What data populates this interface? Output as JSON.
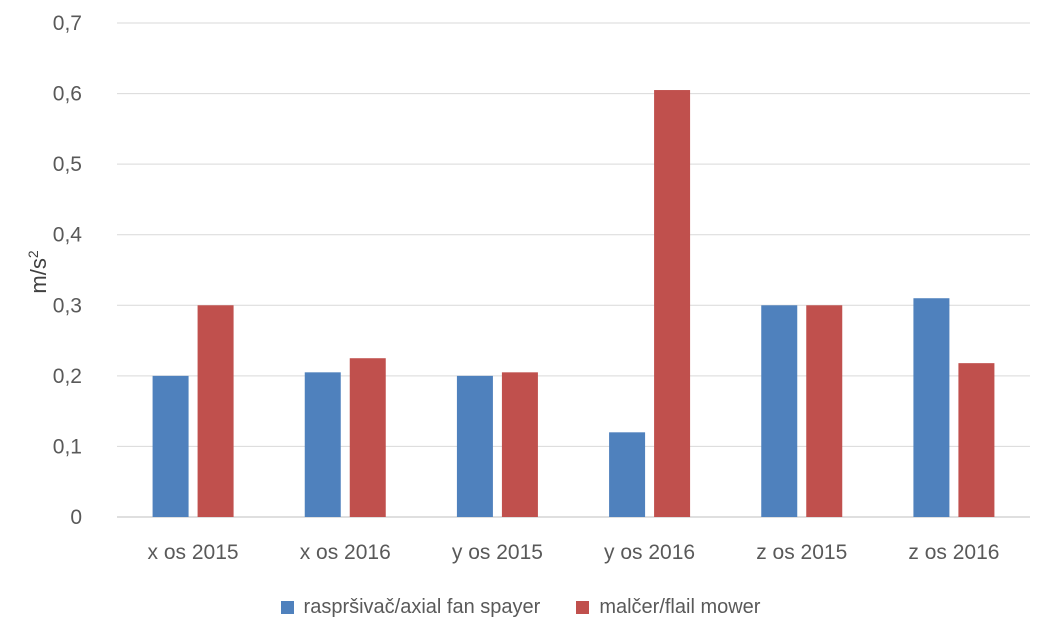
{
  "chart_data": {
    "type": "bar",
    "categories": [
      "x os 2015",
      "x os 2016",
      "y os 2015",
      "y os 2016",
      "z os 2015",
      "z os 2016"
    ],
    "series": [
      {
        "name": "raspršivač/axial fan spayer",
        "color": "#4f81bd",
        "values": [
          0.2,
          0.205,
          0.2,
          0.12,
          0.3,
          0.31
        ]
      },
      {
        "name": "malčer/flail mower",
        "color": "#c0504d",
        "values": [
          0.3,
          0.225,
          0.205,
          0.605,
          0.3,
          0.218
        ]
      }
    ],
    "ylabel": "m/s",
    "ylabel_superscript": "2",
    "ylim": [
      0,
      0.7
    ],
    "yticks": [
      0,
      0.1,
      0.2,
      0.3,
      0.4,
      0.5,
      0.6,
      0.7
    ],
    "ytick_labels": [
      "0",
      "0,1",
      "0,2",
      "0,3",
      "0,4",
      "0,5",
      "0,6",
      "0,7"
    ],
    "grid": true,
    "legend_position": "bottom"
  }
}
